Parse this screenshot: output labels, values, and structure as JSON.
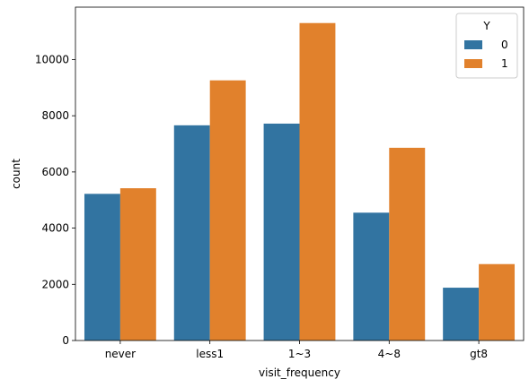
{
  "chart_data": {
    "type": "bar",
    "categories": [
      "never",
      "less1",
      "1~3",
      "4~8",
      "gt8"
    ],
    "series": [
      {
        "name": "0",
        "values": [
          5220,
          7660,
          7720,
          4550,
          1880
        ],
        "color": "#3274a1"
      },
      {
        "name": "1",
        "values": [
          5420,
          9260,
          11300,
          6860,
          2720
        ],
        "color": "#e1812c"
      }
    ],
    "xlabel": "visit_frequency",
    "ylabel": "count",
    "ylim": [
      0,
      11865
    ],
    "yticks": [
      0,
      2000,
      4000,
      6000,
      8000,
      10000
    ],
    "legend": {
      "title": "Y",
      "position": "top-right"
    },
    "grid": false
  }
}
